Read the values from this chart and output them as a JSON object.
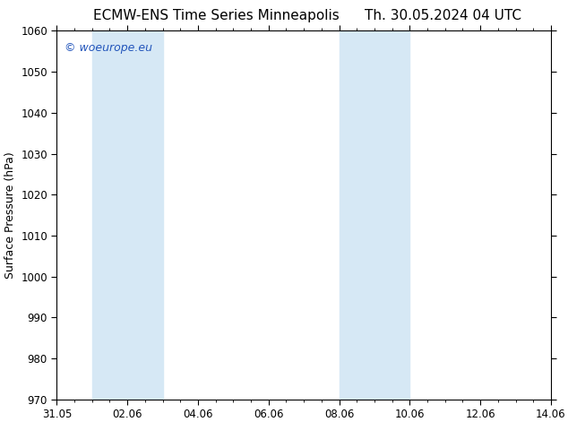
{
  "title_left": "ECMW-ENS Time Series Minneapolis",
  "title_right": "Th. 30.05.2024 04 UTC",
  "ylabel": "Surface Pressure (hPa)",
  "ylim": [
    970,
    1060
  ],
  "yticks": [
    970,
    980,
    990,
    1000,
    1010,
    1020,
    1030,
    1040,
    1050,
    1060
  ],
  "xlim": [
    0,
    14
  ],
  "xtick_labels": [
    "31.05",
    "02.06",
    "04.06",
    "06.06",
    "08.06",
    "10.06",
    "12.06",
    "14.06"
  ],
  "xtick_positions": [
    0,
    2,
    4,
    6,
    8,
    10,
    12,
    14
  ],
  "shaded_bands": [
    {
      "x_start": 1,
      "x_end": 3
    },
    {
      "x_start": 8,
      "x_end": 10
    }
  ],
  "band_color": "#d6e8f5",
  "watermark_text": "© woeurope.eu",
  "watermark_color": "#2255bb",
  "background_color": "#ffffff",
  "axes_bg_color": "#ffffff",
  "title_fontsize": 11,
  "label_fontsize": 9,
  "tick_fontsize": 8.5,
  "watermark_fontsize": 9
}
